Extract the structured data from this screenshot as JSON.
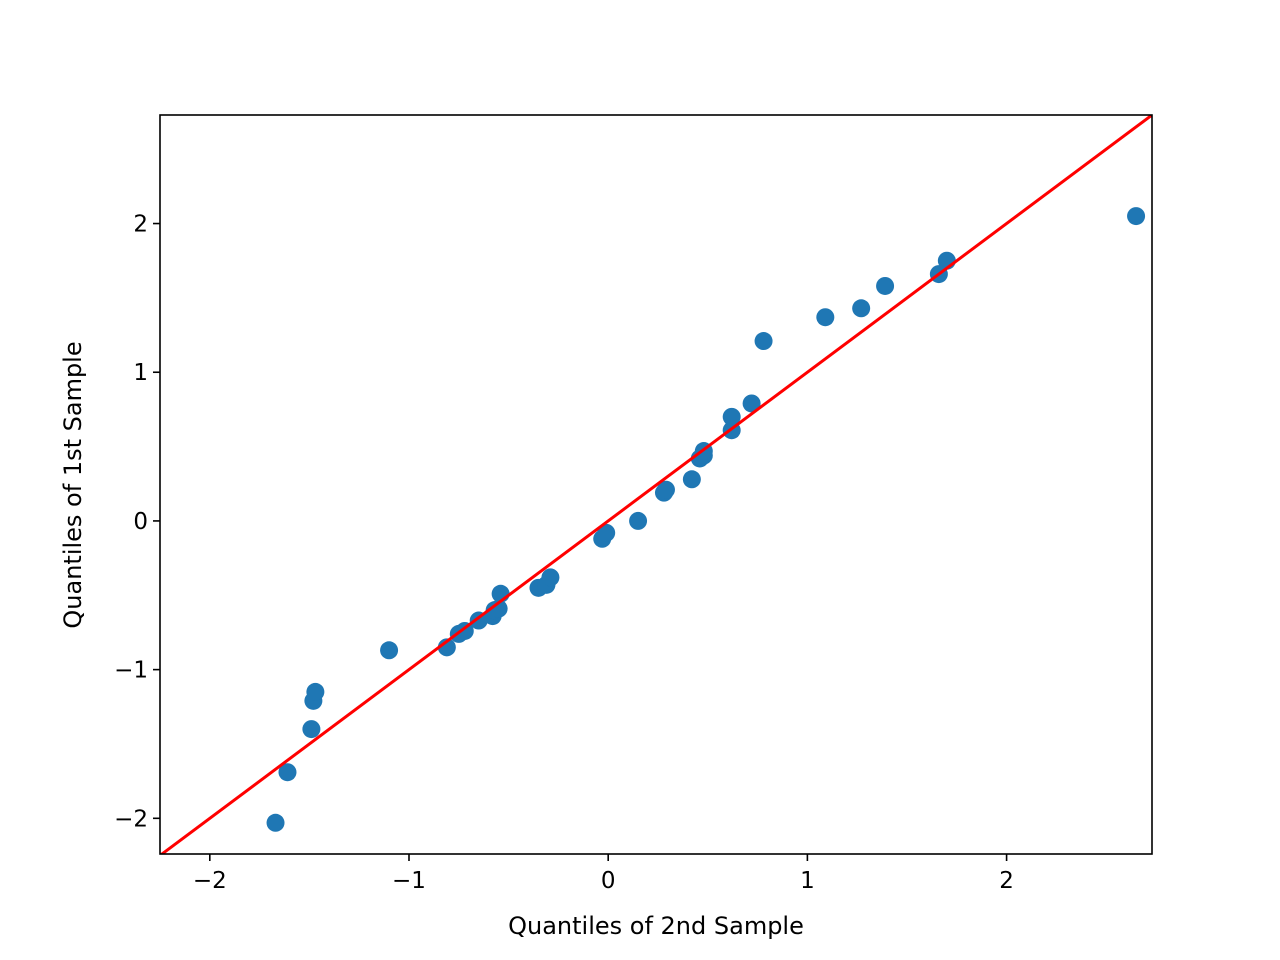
{
  "chart_data": {
    "type": "scatter",
    "title": "",
    "xlabel": "Quantiles of 2nd Sample",
    "ylabel": "Quantiles of 1st Sample",
    "xlim": [
      -2.25,
      2.73
    ],
    "ylim": [
      -2.24,
      2.73
    ],
    "x_ticks": [
      -2,
      -1,
      0,
      1,
      2
    ],
    "y_ticks": [
      -2,
      -1,
      0,
      1,
      2
    ],
    "x_tick_labels": [
      "−2",
      "−1",
      "0",
      "1",
      "2"
    ],
    "y_tick_labels": [
      "−2",
      "−1",
      "0",
      "1",
      "2"
    ],
    "grid": false,
    "series": [
      {
        "color": "#1f77b4",
        "points": [
          {
            "x": -1.67,
            "y": -2.03
          },
          {
            "x": -1.61,
            "y": -1.69
          },
          {
            "x": -1.49,
            "y": -1.4
          },
          {
            "x": -1.48,
            "y": -1.21
          },
          {
            "x": -1.47,
            "y": -1.15
          },
          {
            "x": -1.1,
            "y": -0.87
          },
          {
            "x": -0.81,
            "y": -0.85
          },
          {
            "x": -0.75,
            "y": -0.76
          },
          {
            "x": -0.72,
            "y": -0.74
          },
          {
            "x": -0.65,
            "y": -0.67
          },
          {
            "x": -0.58,
            "y": -0.64
          },
          {
            "x": -0.57,
            "y": -0.6
          },
          {
            "x": -0.55,
            "y": -0.59
          },
          {
            "x": -0.54,
            "y": -0.49
          },
          {
            "x": -0.35,
            "y": -0.45
          },
          {
            "x": -0.31,
            "y": -0.43
          },
          {
            "x": -0.29,
            "y": -0.38
          },
          {
            "x": -0.03,
            "y": -0.12
          },
          {
            "x": -0.01,
            "y": -0.08
          },
          {
            "x": 0.15,
            "y": 0.0
          },
          {
            "x": 0.28,
            "y": 0.19
          },
          {
            "x": 0.29,
            "y": 0.21
          },
          {
            "x": 0.42,
            "y": 0.28
          },
          {
            "x": 0.46,
            "y": 0.42
          },
          {
            "x": 0.48,
            "y": 0.44
          },
          {
            "x": 0.48,
            "y": 0.47
          },
          {
            "x": 0.62,
            "y": 0.61
          },
          {
            "x": 0.62,
            "y": 0.7
          },
          {
            "x": 0.72,
            "y": 0.79
          },
          {
            "x": 0.78,
            "y": 1.21
          },
          {
            "x": 1.09,
            "y": 1.37
          },
          {
            "x": 1.27,
            "y": 1.43
          },
          {
            "x": 1.39,
            "y": 1.58
          },
          {
            "x": 1.66,
            "y": 1.66
          },
          {
            "x": 1.7,
            "y": 1.75
          },
          {
            "x": 2.65,
            "y": 2.05
          }
        ]
      }
    ],
    "reference_line": {
      "color": "#ff0000",
      "start": {
        "x": -2.25,
        "y": -2.25
      },
      "end": {
        "x": 2.73,
        "y": 2.73
      }
    }
  }
}
